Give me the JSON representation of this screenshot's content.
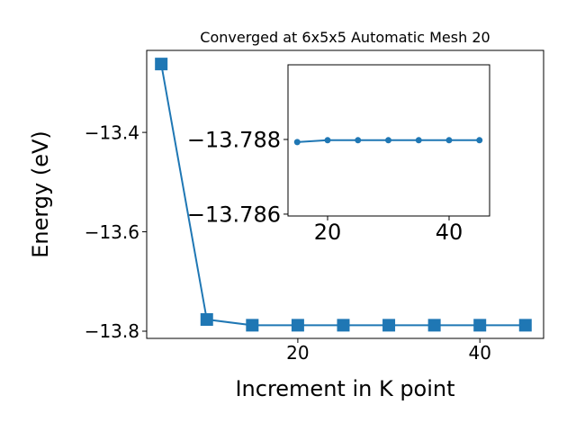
{
  "chart_data": [
    {
      "type": "line",
      "title": "Converged at 6x5x5 Automatic Mesh 20",
      "x_label": "Increment in K point",
      "y_label": "Energy (eV)",
      "x": [
        5,
        10,
        15,
        20,
        25,
        30,
        35,
        40,
        45
      ],
      "values": [
        -13.2624,
        -13.7765,
        -13.788,
        -13.788,
        -13.788,
        -13.788,
        -13.788,
        -13.788,
        -13.788
      ],
      "color": "#1f77b4",
      "marker": "square",
      "xlim": [
        3.4,
        47.0
      ],
      "ylim": [
        -13.8145,
        -13.235
      ],
      "xticks": [
        20,
        40
      ],
      "yticks": [
        {
          "value": -13.4,
          "label": "−13.4"
        },
        {
          "value": -13.6,
          "label": "−13.6"
        },
        {
          "value": -13.8,
          "label": "−13.8"
        }
      ]
    },
    {
      "type": "line",
      "inset": true,
      "x": [
        15,
        20,
        25,
        30,
        35,
        40,
        45
      ],
      "values": [
        -13.78793,
        -13.78798,
        -13.78798,
        -13.78798,
        -13.78798,
        -13.78798,
        -13.78798
      ],
      "color": "#1f77b4",
      "marker": "circle",
      "xlim": [
        13.48,
        46.67
      ],
      "ylim": [
        -13.78595,
        -13.79
      ],
      "xticks": [
        20,
        40
      ],
      "yticks": [
        {
          "value": -13.788,
          "label": "−13.788"
        },
        {
          "value": -13.786,
          "label": "−13.786"
        }
      ]
    }
  ]
}
